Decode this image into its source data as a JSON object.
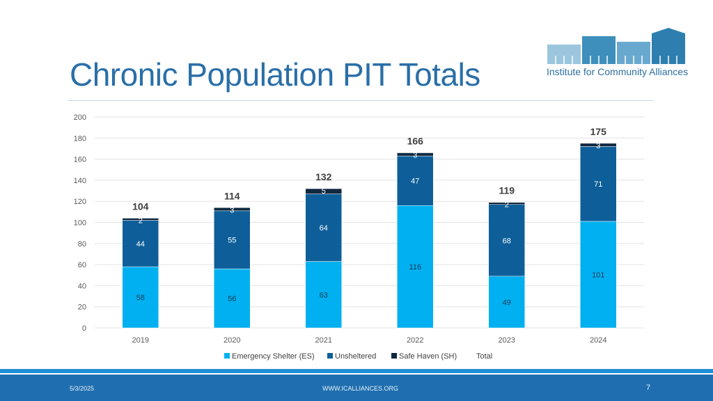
{
  "slide": {
    "title": "Chronic Population PIT Totals",
    "logo_text": "Institute for Community Alliances"
  },
  "footer": {
    "date": "5/3/2025",
    "url": "WWW.ICALLIANCES.ORG",
    "page": "7"
  },
  "colors": {
    "es": "#00b0f0",
    "unsheltered": "#0e5f99",
    "sh": "#0f2840",
    "title": "#2a6fa8",
    "footer": "#1f6fb0"
  },
  "chart_data": {
    "type": "bar",
    "stacked": true,
    "categories": [
      "2019",
      "2020",
      "2021",
      "2022",
      "2023",
      "2024"
    ],
    "series": [
      {
        "name": "Emergency Shelter (ES)",
        "values": [
          58,
          56,
          63,
          116,
          49,
          101
        ],
        "color": "#00b0f0"
      },
      {
        "name": "Unsheltered",
        "values": [
          44,
          55,
          64,
          47,
          68,
          71
        ],
        "color": "#0e5f99"
      },
      {
        "name": "Safe Haven (SH)",
        "values": [
          2,
          3,
          5,
          3,
          2,
          3
        ],
        "color": "#0f2840"
      }
    ],
    "totals": {
      "name": "Total",
      "values": [
        104,
        114,
        132,
        166,
        119,
        175
      ]
    },
    "ylim": [
      0,
      200
    ],
    "yticks": [
      0,
      20,
      40,
      60,
      80,
      100,
      120,
      140,
      160,
      180,
      200
    ],
    "grid": true,
    "legend_position": "bottom"
  }
}
